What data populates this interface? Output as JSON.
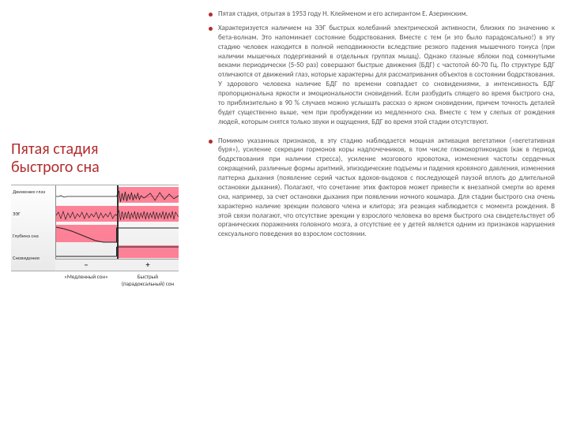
{
  "title": "Пятая стадия быстрого сна",
  "bullets": {
    "b1": "Пятая стадия, отрытая в 1953 году Н. Клейменом и его аспирантом Е. Азеринским.",
    "b2": "Характеризуется наличием на ЭЭГ быстрых колебаний электрической активности, близких по значению к бета-волнам. Это напоминает состояние бодрствования. Вместе с тем (и это было парадоксально!) в эту стадию человек находится в полной неподвижности вследствие резкого падения мышечного тонуса (при наличии мышечных подергиваний в отдельных группах мышц). Однако глазные яблоки под сомкнутыми веками периодически (5-50 раз) совершают быстрые движения (БДГ) с частотой 60-70 Гц. По структуре БДГ отличаются от движений глаз, которые характерны для рассматривания объектов в состоянии бодрствования. У здорового человека наличие БДГ по времени совпадает со сновидениями, а интенсивность БДГ пропорциональна яркости и эмоциональности сновидений. Если разбудить спящего во время быстрого сна, то приблизительно в 90 % случаев можно услышать рассказ о ярком сновидении, причем точность деталей будет существенно выше, чем при пробуждении из медленного сна. Вместе с тем у слепых от рождения людей, которым снятся только звуки и ощущения, БДГ во время этой стадии отсутствуют.",
    "b3": "Помимо указанных признаков, в эту стадию наблюдается мощная активация вегетатики («вегетативная буря»), усиление секреции гормонов коры надпочечников, в том числе глюкокортикоидов (как в период бодрствования при наличии стресса), усиление мозгового кровотока, изменения частоты сердечных сокращений, различные формы аритмий, эпизодические подъемы и падения кровяного давления, изменения паттерна дыхания (появление серий частых вдохов-выдохов с последующей паузой вплоть до длительной остановки дыхания). Полагают, что сочетание этих факторов может привести к внезапной смерти во время сна, например, за счет остановки дыхания при появлении ночного кошмара. Для стадии быстрого сна очень характерно наличие эрекции полового члена и клитора; эта реакция наблюдается с момента рождения. В этой связи полагают, что отсутствие эрекции у взрослого человека во время быстрого сна свидетельствует об органических поражениях головного мозга, а отсутствие ее у детей является одним из признаков нарушения сексуального поведения во взрослом состоянии."
  },
  "chart": {
    "ylabels": [
      "Движение глаз",
      "ЭЭГ",
      "Глубина сна",
      "Сновидения"
    ],
    "xcap_left": "«Медленный сон»",
    "xcap_right": "Быстрый (парадоксальный) сон",
    "minus": "−",
    "plus": "+",
    "pink": "#ff6d86",
    "line": "#222"
  }
}
